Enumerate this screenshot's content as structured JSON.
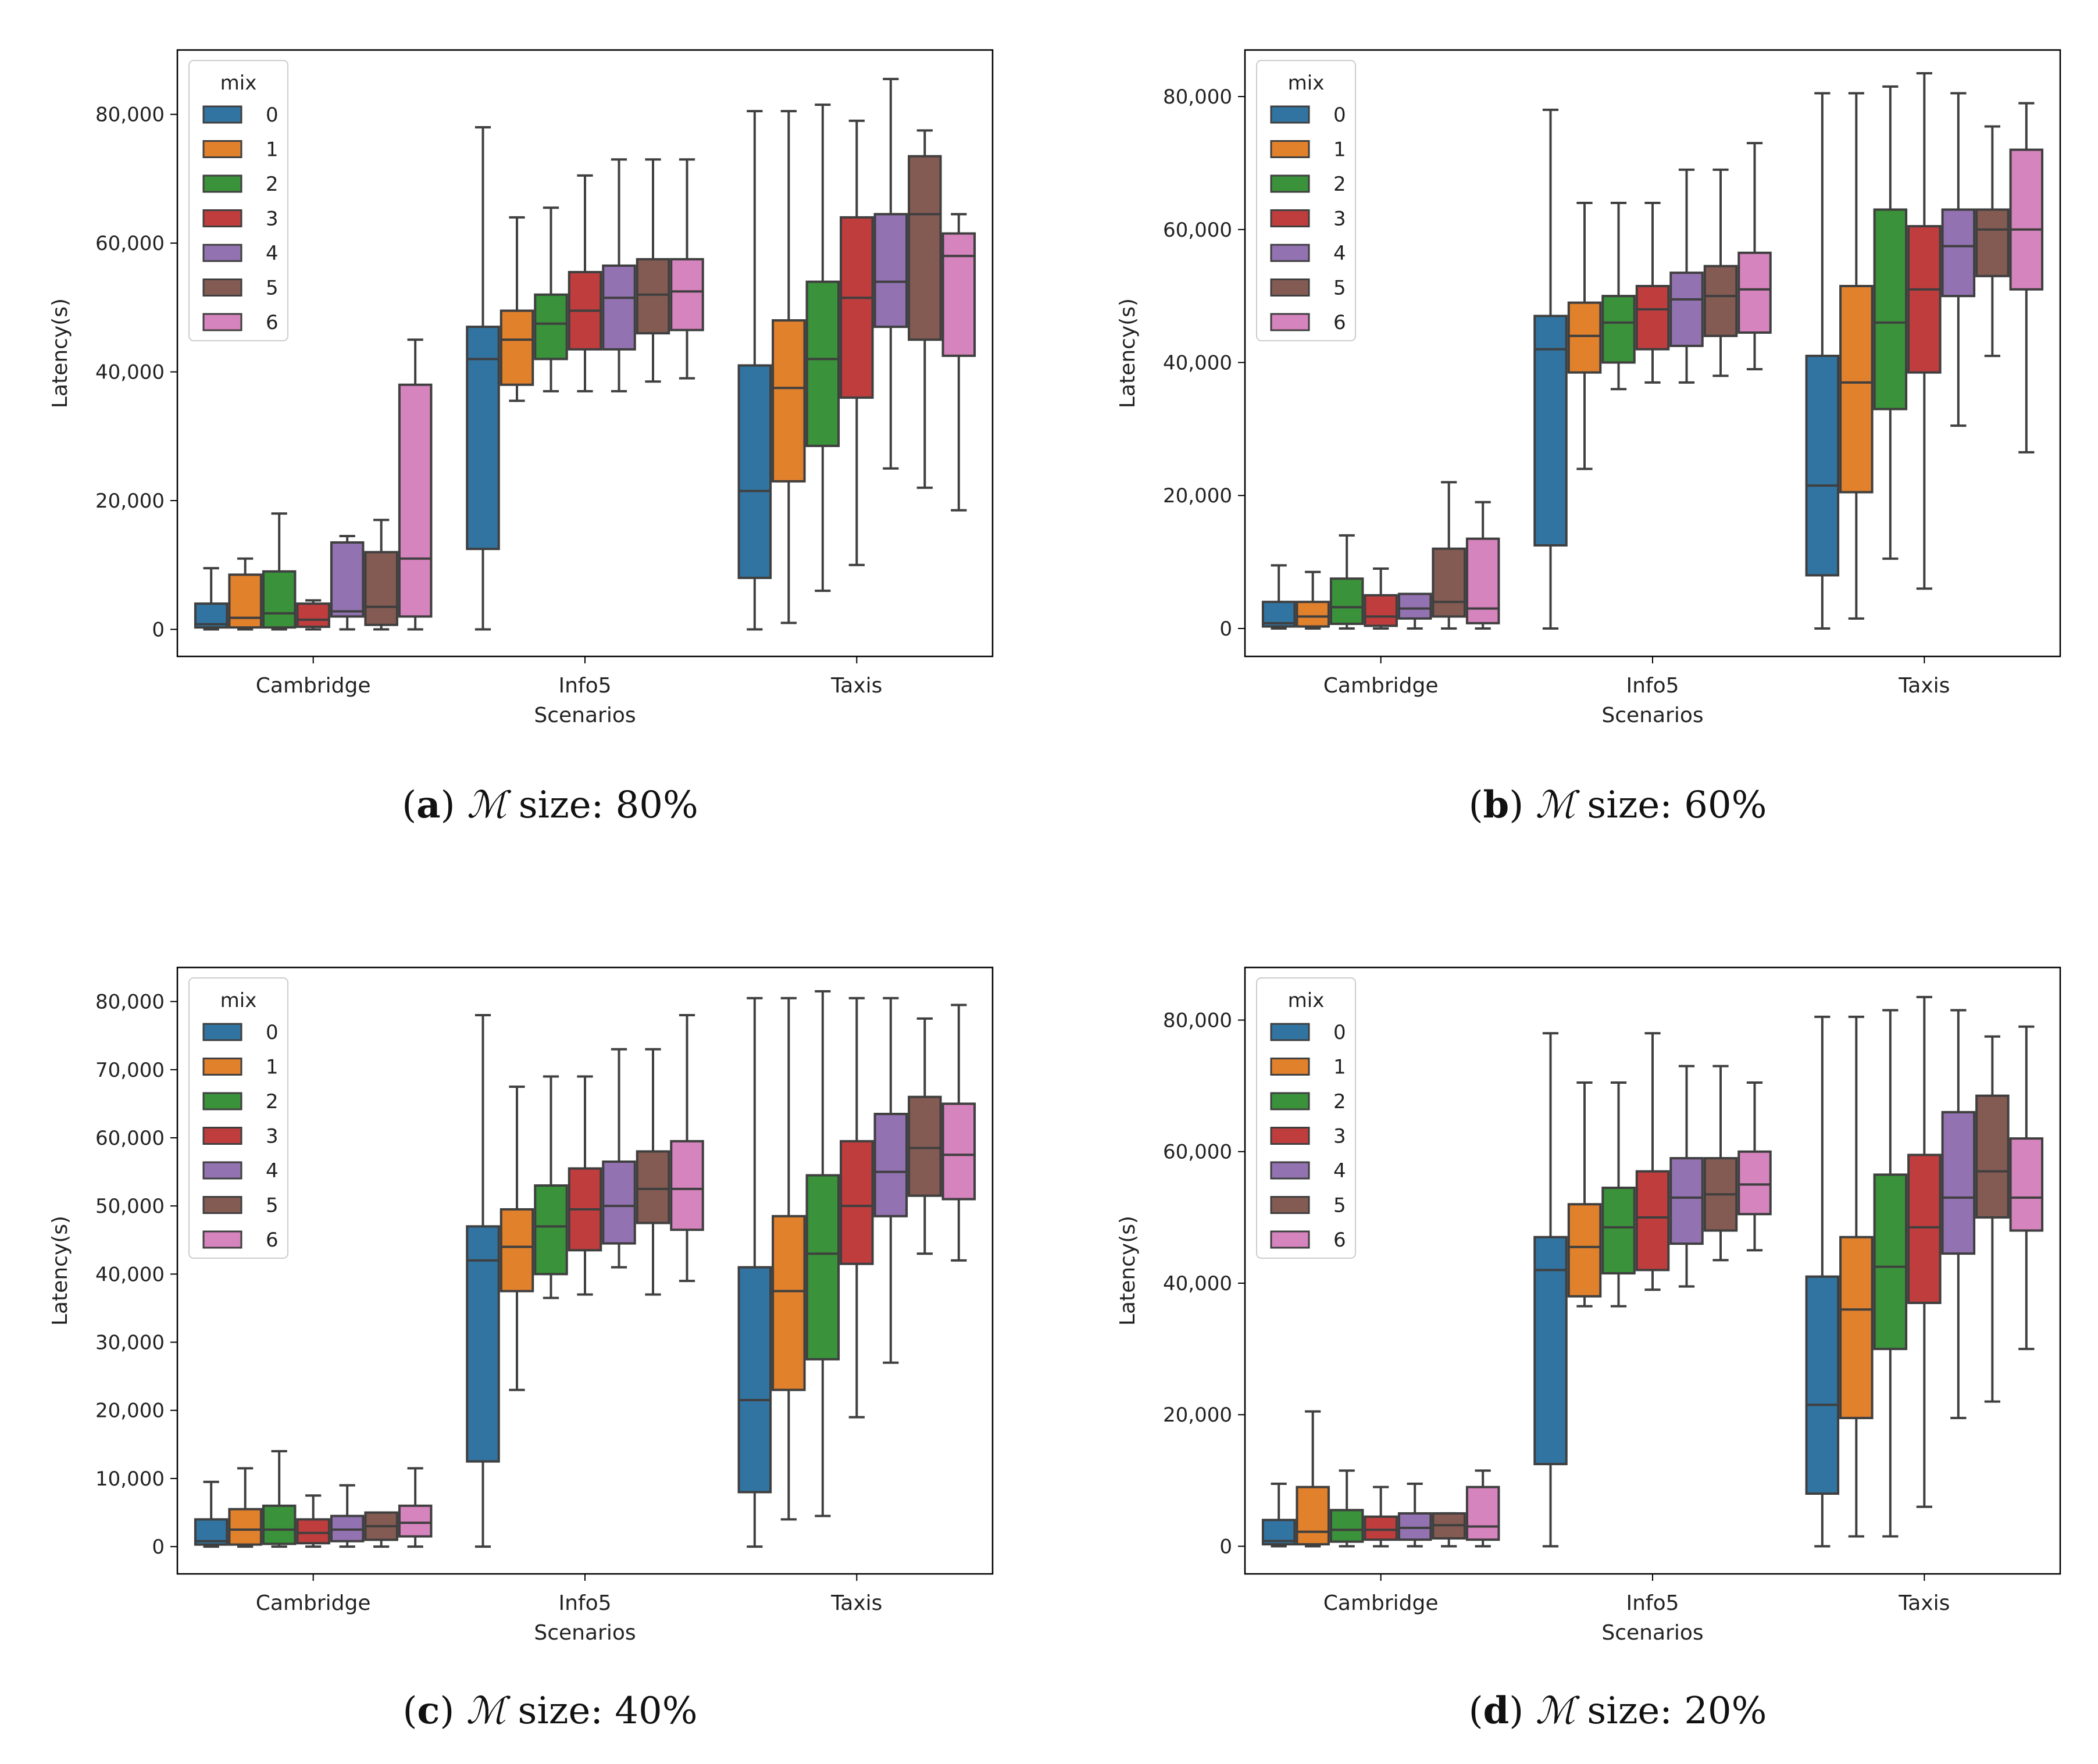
{
  "figure": {
    "panel_captions": [
      {
        "letter": "a",
        "symbol": "ℳ",
        "text": " size: 80%"
      },
      {
        "letter": "b",
        "symbol": "ℳ",
        "text": " size: 60%"
      },
      {
        "letter": "c",
        "symbol": "ℳ",
        "text": " size: 40%"
      },
      {
        "letter": "d",
        "symbol": "ℳ",
        "text": " size: 20%"
      }
    ]
  },
  "colors": {
    "0": "#3274a1",
    "1": "#e1812c",
    "2": "#3a923a",
    "3": "#c03d3e",
    "4": "#9372b2",
    "5": "#845b53",
    "6": "#d684bd",
    "edge": "#3f3f3f"
  },
  "chart_data": [
    {
      "type": "box",
      "caption": "(a) M size: 80%",
      "xlabel": "Scenarios",
      "ylabel": "Latency(s)",
      "ylim": [
        -4200,
        90000
      ],
      "yticks": [
        0,
        20000,
        40000,
        60000,
        80000
      ],
      "ytick_labels": [
        "0",
        "20,000",
        "40,000",
        "60,000",
        "80,000"
      ],
      "categories": [
        "Cambridge",
        "Info5",
        "Taxis"
      ],
      "legend": {
        "title": "mix",
        "location": "upper-left",
        "entries": [
          "0",
          "1",
          "2",
          "3",
          "4",
          "5",
          "6"
        ]
      },
      "series": [
        {
          "name": "0",
          "boxes": [
            [
              0,
              300,
              800,
              4000,
              9500
            ],
            [
              0,
              12500,
              42000,
              47000,
              78000
            ],
            [
              0,
              8000,
              21500,
              41000,
              80500
            ]
          ]
        },
        {
          "name": "1",
          "boxes": [
            [
              0,
              300,
              1800,
              8500,
              11000
            ],
            [
              35500,
              38000,
              45000,
              49500,
              64000
            ],
            [
              1000,
              23000,
              37500,
              48000,
              80500
            ]
          ]
        },
        {
          "name": "2",
          "boxes": [
            [
              0,
              300,
              2500,
              9000,
              18000
            ],
            [
              37000,
              42000,
              47500,
              52000,
              65500
            ],
            [
              6000,
              28500,
              42000,
              54000,
              81500
            ]
          ]
        },
        {
          "name": "3",
          "boxes": [
            [
              0,
              400,
              1500,
              4000,
              4500
            ],
            [
              37000,
              43500,
              49500,
              55500,
              70500
            ],
            [
              10000,
              36000,
              51500,
              64000,
              79000
            ]
          ]
        },
        {
          "name": "4",
          "boxes": [
            [
              0,
              2000,
              2800,
              13500,
              14500
            ],
            [
              37000,
              43500,
              51500,
              56500,
              73000
            ],
            [
              25000,
              47000,
              54000,
              64500,
              85500
            ]
          ]
        },
        {
          "name": "5",
          "boxes": [
            [
              0,
              700,
              3500,
              12000,
              17000
            ],
            [
              38500,
              46000,
              52000,
              57500,
              73000
            ],
            [
              22000,
              45000,
              64500,
              73500,
              77500
            ]
          ]
        },
        {
          "name": "6",
          "boxes": [
            [
              0,
              2000,
              11000,
              38000,
              45000
            ],
            [
              39000,
              46500,
              52500,
              57500,
              73000
            ],
            [
              18500,
              42500,
              58000,
              61500,
              64500
            ]
          ]
        }
      ]
    },
    {
      "type": "box",
      "caption": "(b) M size: 60%",
      "xlabel": "Scenarios",
      "ylabel": "Latency(s)",
      "ylim": [
        -4200,
        87000
      ],
      "yticks": [
        0,
        20000,
        40000,
        60000,
        80000
      ],
      "ytick_labels": [
        "0",
        "20,000",
        "40,000",
        "60,000",
        "80,000"
      ],
      "categories": [
        "Cambridge",
        "Info5",
        "Taxis"
      ],
      "legend": {
        "title": "mix",
        "location": "upper-left",
        "entries": [
          "0",
          "1",
          "2",
          "3",
          "4",
          "5",
          "6"
        ]
      },
      "series": [
        {
          "name": "0",
          "boxes": [
            [
              0,
              300,
              800,
              4000,
              9500
            ],
            [
              0,
              12500,
              42000,
              47000,
              78000
            ],
            [
              0,
              8000,
              21500,
              41000,
              80500
            ]
          ]
        },
        {
          "name": "1",
          "boxes": [
            [
              0,
              300,
              1800,
              4000,
              8500
            ],
            [
              24000,
              38500,
              44000,
              49000,
              64000
            ],
            [
              1500,
              20500,
              37000,
              51500,
              80500
            ]
          ]
        },
        {
          "name": "2",
          "boxes": [
            [
              0,
              700,
              3200,
              7500,
              14000
            ],
            [
              36000,
              40000,
              46000,
              50000,
              64000
            ],
            [
              10500,
              33000,
              46000,
              63000,
              81500
            ]
          ]
        },
        {
          "name": "3",
          "boxes": [
            [
              0,
              400,
              1800,
              5000,
              9000
            ],
            [
              37000,
              42000,
              48000,
              51500,
              64000
            ],
            [
              6000,
              38500,
              51000,
              60500,
              83500
            ]
          ]
        },
        {
          "name": "4",
          "boxes": [
            [
              0,
              1500,
              3000,
              5200,
              5200
            ],
            [
              37000,
              42500,
              49500,
              53500,
              69000
            ],
            [
              30500,
              50000,
              57500,
              63000,
              80500
            ]
          ]
        },
        {
          "name": "5",
          "boxes": [
            [
              0,
              1800,
              4000,
              12000,
              22000
            ],
            [
              38000,
              44000,
              50000,
              54500,
              69000
            ],
            [
              41000,
              53000,
              60000,
              63000,
              75500
            ]
          ]
        },
        {
          "name": "6",
          "boxes": [
            [
              0,
              800,
              3000,
              13500,
              19000
            ],
            [
              39000,
              44500,
              51000,
              56500,
              73000
            ],
            [
              26500,
              51000,
              60000,
              72000,
              79000
            ]
          ]
        }
      ]
    },
    {
      "type": "box",
      "caption": "(c) M size: 40%",
      "xlabel": "Scenarios",
      "ylabel": "Latency(s)",
      "ylim": [
        -4000,
        85000
      ],
      "yticks": [
        0,
        10000,
        20000,
        30000,
        40000,
        50000,
        60000,
        70000,
        80000
      ],
      "ytick_labels": [
        "0",
        "10,000",
        "20,000",
        "30,000",
        "40,000",
        "50,000",
        "60,000",
        "70,000",
        "80,000"
      ],
      "categories": [
        "Cambridge",
        "Info5",
        "Taxis"
      ],
      "legend": {
        "title": "mix",
        "location": "upper-left",
        "entries": [
          "0",
          "1",
          "2",
          "3",
          "4",
          "5",
          "6"
        ]
      },
      "series": [
        {
          "name": "0",
          "boxes": [
            [
              0,
              300,
              800,
              4000,
              9500
            ],
            [
              0,
              12500,
              42000,
              47000,
              78000
            ],
            [
              0,
              8000,
              21500,
              41000,
              80500
            ]
          ]
        },
        {
          "name": "1",
          "boxes": [
            [
              0,
              300,
              2500,
              5500,
              11500
            ],
            [
              23000,
              37500,
              44000,
              49500,
              67500
            ],
            [
              4000,
              23000,
              37500,
              48500,
              80500
            ]
          ]
        },
        {
          "name": "2",
          "boxes": [
            [
              0,
              400,
              2500,
              6000,
              14000
            ],
            [
              36500,
              40000,
              47000,
              53000,
              69000
            ],
            [
              4500,
              27500,
              43000,
              54500,
              81500
            ]
          ]
        },
        {
          "name": "3",
          "boxes": [
            [
              0,
              500,
              2000,
              4000,
              7500
            ],
            [
              37000,
              43500,
              49500,
              55500,
              69000
            ],
            [
              19000,
              41500,
              50000,
              59500,
              80500
            ]
          ]
        },
        {
          "name": "4",
          "boxes": [
            [
              0,
              800,
              2500,
              4500,
              9000
            ],
            [
              41000,
              44500,
              50000,
              56500,
              73000
            ],
            [
              27000,
              48500,
              55000,
              63500,
              80500
            ]
          ]
        },
        {
          "name": "5",
          "boxes": [
            [
              0,
              1000,
              3000,
              5000,
              5000
            ],
            [
              37000,
              47500,
              52500,
              58000,
              73000
            ],
            [
              43000,
              51500,
              58500,
              66000,
              77500
            ]
          ]
        },
        {
          "name": "6",
          "boxes": [
            [
              0,
              1500,
              3500,
              6000,
              11500
            ],
            [
              39000,
              46500,
              52500,
              59500,
              78000
            ],
            [
              42000,
              51000,
              57500,
              65000,
              79500
            ]
          ]
        }
      ]
    },
    {
      "type": "box",
      "caption": "(d) M size: 20%",
      "xlabel": "Scenarios",
      "ylabel": "Latency(s)",
      "ylim": [
        -4200,
        88000
      ],
      "yticks": [
        0,
        20000,
        40000,
        60000,
        80000
      ],
      "ytick_labels": [
        "0",
        "20,000",
        "40,000",
        "60,000",
        "80,000"
      ],
      "categories": [
        "Cambridge",
        "Info5",
        "Taxis"
      ],
      "legend": {
        "title": "mix",
        "location": "upper-left",
        "entries": [
          "0",
          "1",
          "2",
          "3",
          "4",
          "5",
          "6"
        ]
      },
      "series": [
        {
          "name": "0",
          "boxes": [
            [
              0,
              300,
              800,
              4000,
              9500
            ],
            [
              0,
              12500,
              42000,
              47000,
              78000
            ],
            [
              0,
              8000,
              21500,
              41000,
              80500
            ]
          ]
        },
        {
          "name": "1",
          "boxes": [
            [
              0,
              300,
              2200,
              9000,
              20500
            ],
            [
              36500,
              38000,
              45500,
              52000,
              70500
            ],
            [
              1500,
              19500,
              36000,
              47000,
              80500
            ]
          ]
        },
        {
          "name": "2",
          "boxes": [
            [
              0,
              700,
              2500,
              5500,
              11500
            ],
            [
              36500,
              41500,
              48500,
              54500,
              70500
            ],
            [
              1500,
              30000,
              42500,
              56500,
              81500
            ]
          ]
        },
        {
          "name": "3",
          "boxes": [
            [
              0,
              1000,
              2500,
              4500,
              9000
            ],
            [
              39000,
              42000,
              50000,
              57000,
              78000
            ],
            [
              6000,
              37000,
              48500,
              59500,
              83500
            ]
          ]
        },
        {
          "name": "4",
          "boxes": [
            [
              0,
              1000,
              2800,
              5000,
              9500
            ],
            [
              39500,
              46000,
              53000,
              59000,
              73000
            ],
            [
              19500,
              44500,
              53000,
              66000,
              81500
            ]
          ]
        },
        {
          "name": "5",
          "boxes": [
            [
              0,
              1200,
              3200,
              5000,
              5000
            ],
            [
              43500,
              48000,
              53500,
              59000,
              73000
            ],
            [
              22000,
              50000,
              57000,
              68500,
              77500
            ]
          ]
        },
        {
          "name": "6",
          "boxes": [
            [
              0,
              1000,
              3000,
              9000,
              11500
            ],
            [
              45000,
              50500,
              55000,
              60000,
              70500
            ],
            [
              30000,
              48000,
              53000,
              62000,
              79000
            ]
          ]
        }
      ]
    }
  ]
}
